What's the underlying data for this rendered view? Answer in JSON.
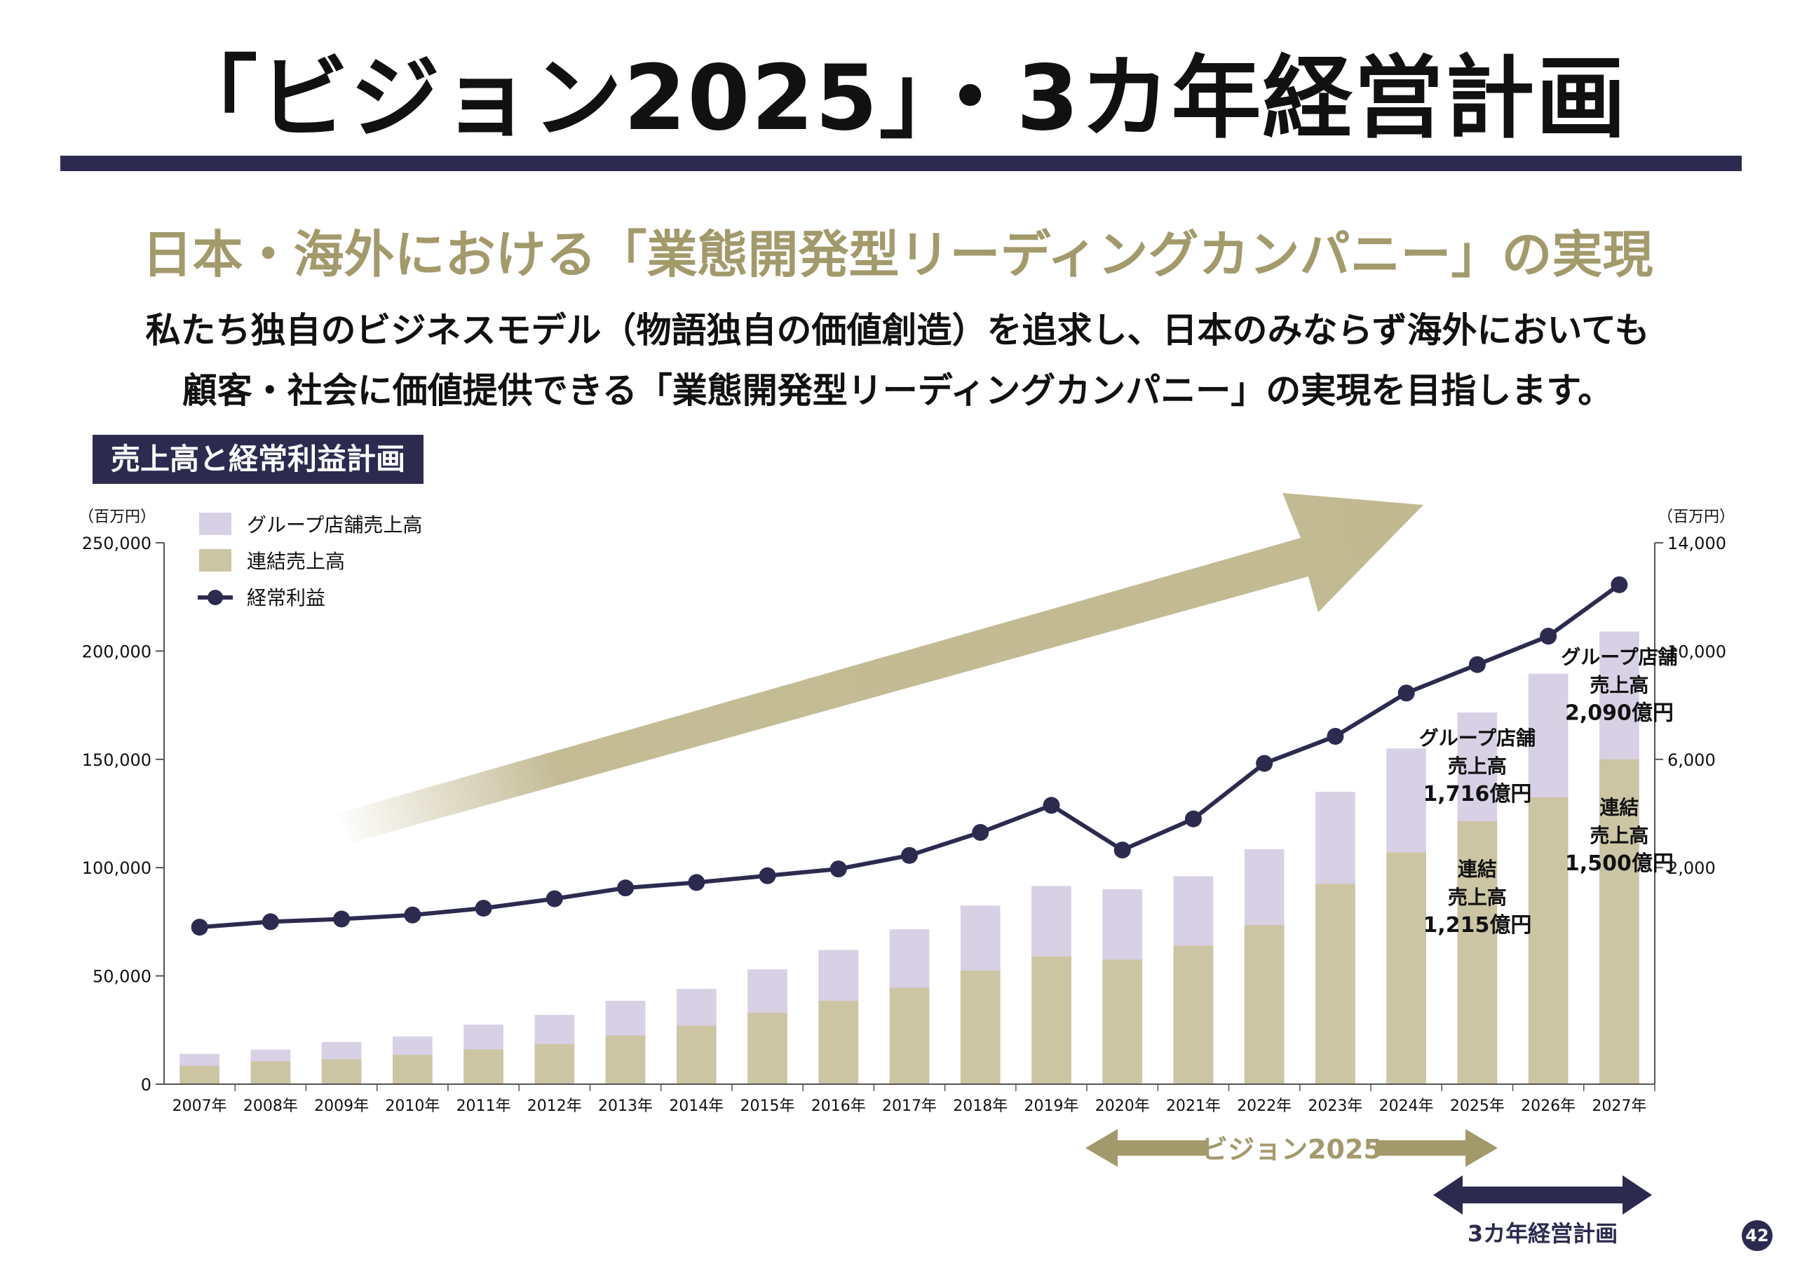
{
  "page": {
    "title": "「ビジョン2025」・3カ年経営計画",
    "headline": "日本・海外における「業態開発型リーディングカンパニー」の実現",
    "lead_line1": "私たち独自のビジネスモデル（物語独自の価値創造）を追求し、日本のみならず海外においても",
    "lead_line2": "顧客・社会に価値提供できる「業態開発型リーディングカンパニー」の実現を目指します。",
    "chart_label": "売上高と経常利益計画",
    "page_number": "42"
  },
  "timeline": {
    "vision_label": "ビジョン2025",
    "plan_label": "3カ年経営計画"
  },
  "colors": {
    "navy": "#2c2b4f",
    "gold": "#a39a6c",
    "consolidated": "#cbc5a4",
    "group": "#d8d0e4",
    "arrow": "#c2b991"
  },
  "chart_data": {
    "type": "bar",
    "categories": [
      "2007年",
      "2008年",
      "2009年",
      "2010年",
      "2011年",
      "2012年",
      "2013年",
      "2014年",
      "2015年",
      "2016年",
      "2017年",
      "2018年",
      "2019年",
      "2020年",
      "2021年",
      "2022年",
      "2023年",
      "2024年",
      "2025年",
      "2026年",
      "2027年"
    ],
    "left_axis": {
      "unit": "（百万円）",
      "min": 0,
      "max": 250000,
      "ticks": [
        0,
        50000,
        100000,
        150000,
        200000,
        250000
      ],
      "tick_labels": [
        "0",
        "50,000",
        "100,000",
        "150,000",
        "200,000",
        "250,000"
      ]
    },
    "right_axis": {
      "unit": "（百万円）",
      "min": -6000,
      "max": 14000,
      "ticks": [
        2000,
        6000,
        10000,
        14000
      ],
      "tick_labels": [
        "2,000",
        "6,000",
        "10,000",
        "14,000"
      ]
    },
    "legend": {
      "placement": "top-left",
      "items": [
        {
          "label": "グループ店舗売上高",
          "kind": "bar",
          "color": "#d8d0e4"
        },
        {
          "label": "連結売上高",
          "kind": "bar",
          "color": "#cbc5a4"
        },
        {
          "label": "経常利益",
          "kind": "line",
          "color": "#2c2b4f"
        }
      ]
    },
    "series": [
      {
        "name": "連結売上高",
        "type": "bar",
        "stack": "sales",
        "axis": "left",
        "color": "#cbc5a4",
        "values": [
          8500,
          10500,
          11500,
          13500,
          16000,
          18500,
          22500,
          27000,
          33000,
          38500,
          44500,
          52500,
          59000,
          57500,
          64000,
          73500,
          92500,
          107000,
          121500,
          132500,
          150000
        ]
      },
      {
        "name": "グループ店舗売上高",
        "type": "bar",
        "stack": "sales",
        "axis": "left",
        "color": "#d8d0e4",
        "values": [
          14000,
          16000,
          19500,
          22000,
          27500,
          32000,
          38500,
          44000,
          53000,
          62000,
          71500,
          82500,
          91500,
          90000,
          96000,
          108500,
          135000,
          155000,
          171600,
          189500,
          209000
        ]
      },
      {
        "name": "経常利益",
        "type": "line",
        "axis": "right",
        "color": "#2c2b4f",
        "values": [
          -200,
          0,
          100,
          250,
          500,
          850,
          1250,
          1450,
          1700,
          1950,
          2450,
          3300,
          4300,
          2650,
          3800,
          5850,
          6850,
          8450,
          9500,
          10550,
          12450
        ]
      }
    ],
    "annotations": [
      {
        "category": "2025年",
        "anchor": "group",
        "lines": [
          "グループ店舗",
          "売上高",
          "1,716億円"
        ]
      },
      {
        "category": "2025年",
        "anchor": "consolidated",
        "lines": [
          "連結",
          "売上高",
          "1,215億円"
        ]
      },
      {
        "category": "2027年",
        "anchor": "group",
        "lines": [
          "グループ店舗",
          "売上高",
          "2,090億円"
        ]
      },
      {
        "category": "2027年",
        "anchor": "consolidated",
        "lines": [
          "連結",
          "売上高",
          "1,500億円"
        ]
      }
    ]
  }
}
